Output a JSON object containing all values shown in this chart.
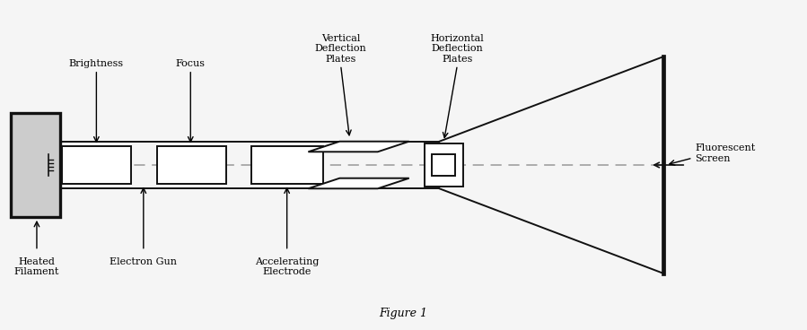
{
  "background_color": "#f5f5f5",
  "figure_caption": "Figure 1",
  "labels": {
    "brightness": "Brightness",
    "focus": "Focus",
    "vertical_deflection": "Vertical\nDeflection\nPlates",
    "horizontal_deflection": "Horizontal\nDeflection\nPlates",
    "heated_filament": "Heated\nFilament",
    "electron_gun": "Electron Gun",
    "accelerating_electrode": "Accelerating\nElectrode",
    "fluorescent_screen": "Fluorescent\nScreen"
  },
  "colors": {
    "component_fill": "#ffffff",
    "component_edge": "#111111",
    "dashed_line": "#999999",
    "arrow": "#111111",
    "background": "#f5f5f5",
    "gun_fill": "#cccccc"
  }
}
